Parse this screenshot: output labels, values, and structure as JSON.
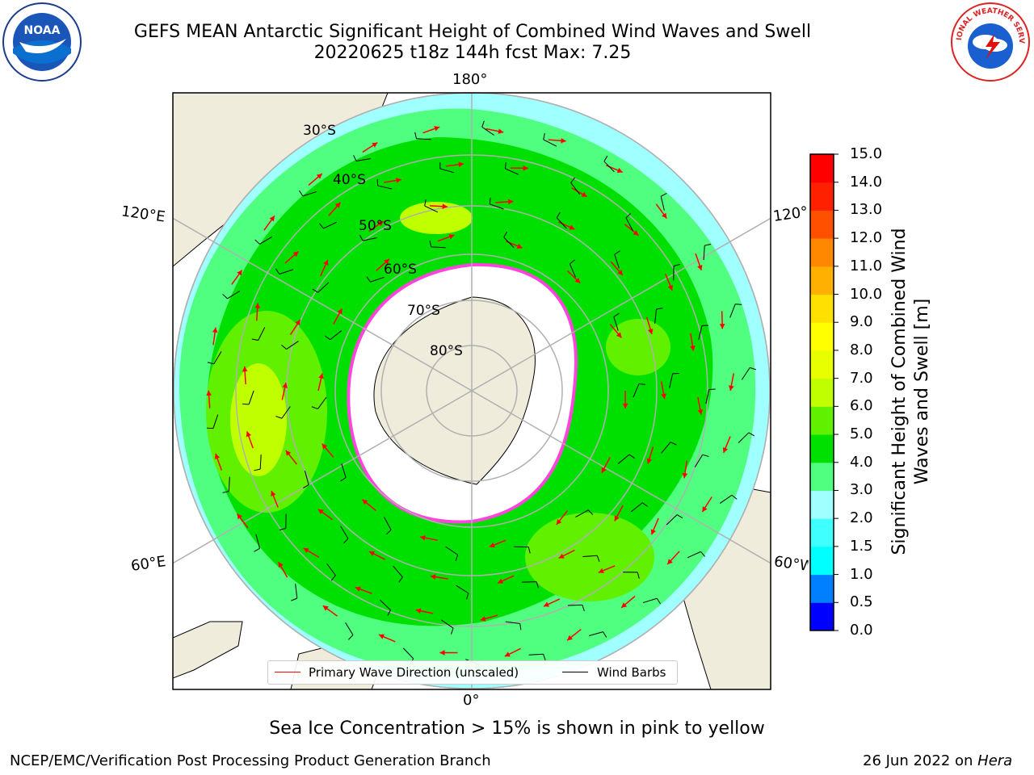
{
  "header": {
    "title_line1": "GEFS MEAN Antarctic Significant Height of Combined Wind Waves and Swell",
    "title_line2": "20220625 t18z 144h fcst   Max: 7.25"
  },
  "logos": {
    "left": {
      "name": "noaa-logo",
      "text": "NOAA"
    },
    "right": {
      "name": "nws-logo",
      "text": "NATIONAL WEATHER SERVICE"
    }
  },
  "map": {
    "projection": "south polar stereographic",
    "lon_labels": {
      "top": "180°",
      "bottom": "0°",
      "upper_left": "120°E",
      "upper_right": "120°W",
      "lower_left": "60°E",
      "lower_right": "60°W"
    },
    "lat_labels": [
      "30°S",
      "40°S",
      "50°S",
      "60°S",
      "70°S",
      "80°S"
    ],
    "colors": {
      "land": "#efecdc",
      "sea_ice": "#ffffff",
      "ice_edge": "#ff44dd",
      "graticule": "#b0b0b0",
      "wave_arrow": "#ff0000",
      "wind_barb": "#000000"
    }
  },
  "colorbar": {
    "label": "Significant Height of Combined Wind Waves and Swell [m]",
    "ticks": [
      "0.0",
      "0.5",
      "1.0",
      "1.5",
      "2.0",
      "3.0",
      "4.0",
      "5.0",
      "6.0",
      "7.0",
      "8.0",
      "9.0",
      "10.0",
      "11.0",
      "12.0",
      "13.0",
      "14.0",
      "15.0"
    ],
    "colors": [
      "#0000ff",
      "#0080ff",
      "#00ffff",
      "#40ffff",
      "#a0ffff",
      "#50ff80",
      "#00e000",
      "#60f000",
      "#c0ff00",
      "#e8ff00",
      "#ffff00",
      "#ffe000",
      "#ffb000",
      "#ff8800",
      "#ff5000",
      "#ff2000",
      "#ff0000"
    ]
  },
  "legend": {
    "wave_label": "Primary Wave Direction (unscaled)",
    "wind_label": "Wind Barbs"
  },
  "footer": {
    "note": "Sea Ice Concentration > 15% is shown in pink to yellow",
    "credit": "NCEP/EMC/Verification Post Processing Product Generation Branch",
    "date": "26 Jun 2022 on",
    "host": "Hera"
  }
}
